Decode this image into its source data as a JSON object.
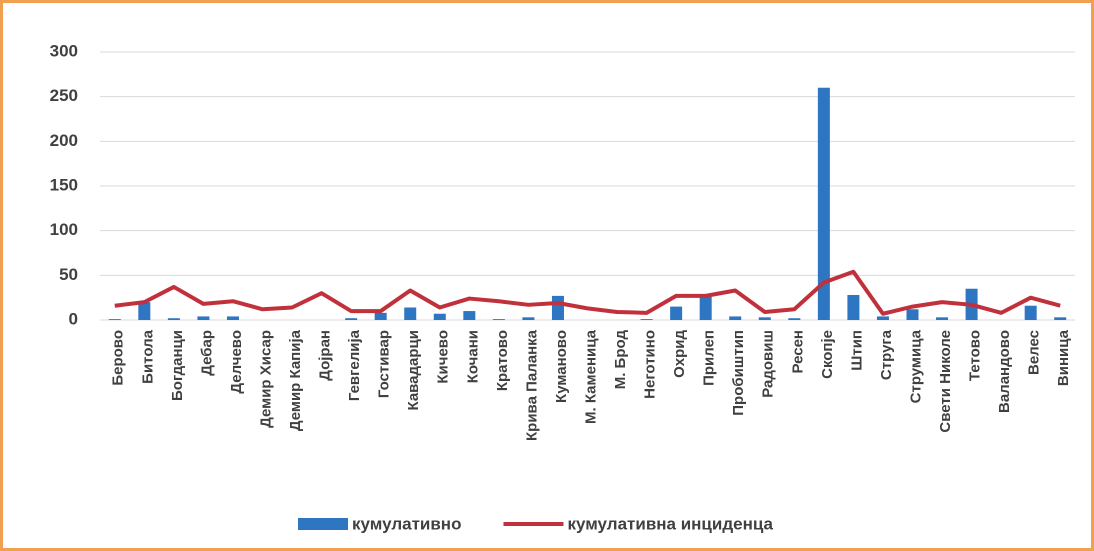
{
  "chart_data": {
    "type": "bar_line",
    "categories": [
      "Берово",
      "Битола",
      "Богданци",
      "Дебар",
      "Делчево",
      "Демир Хисар",
      "Демир Капија",
      "Дојран",
      "Гевгелија",
      "Гостивар",
      "Кавадарци",
      "Кичево",
      "Кочани",
      "Кратово",
      "Крива Паланка",
      "Куманово",
      "М. Каменица",
      "М. Брод",
      "Неготино",
      "Охрид",
      "Прилеп",
      "Пробиштип",
      "Радовиш",
      "Ресен",
      "Скопје",
      "Штип",
      "Струга",
      "Струмица",
      "Свети Николе",
      "Тетово",
      "Валандово",
      "Велес",
      "Виница"
    ],
    "series": [
      {
        "name": "кумулативно",
        "type": "bar",
        "color": "#2e75c2",
        "values": [
          1,
          20,
          2,
          4,
          4,
          0,
          0,
          0,
          2,
          8,
          14,
          7,
          10,
          1,
          3,
          27,
          0,
          0,
          1,
          15,
          27,
          4,
          3,
          2,
          260,
          28,
          4,
          12,
          3,
          35,
          0,
          16,
          3
        ]
      },
      {
        "name": "кумулативна инциденца",
        "type": "line",
        "color": "#c0313b",
        "values": [
          16,
          20,
          37,
          18,
          21,
          12,
          14,
          30,
          10,
          10,
          33,
          14,
          24,
          21,
          17,
          19,
          13,
          9,
          8,
          27,
          27,
          33,
          9,
          12,
          42,
          54,
          7,
          15,
          20,
          17,
          8,
          25,
          16
        ]
      }
    ],
    "ylim": [
      0,
      300
    ],
    "yticks": [
      0,
      50,
      100,
      150,
      200,
      250,
      300
    ],
    "grid": true,
    "legend": "bottom"
  }
}
